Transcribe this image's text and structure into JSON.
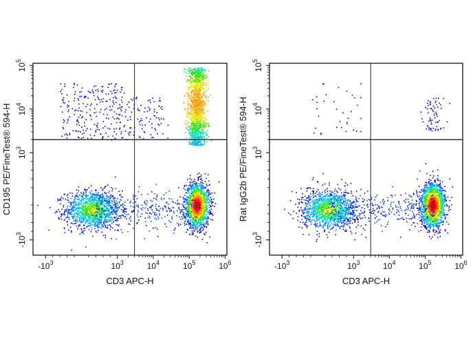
{
  "chart_data": [
    {
      "type": "scatter",
      "subtype": "flow-cytometry-density-plot",
      "xlabel": "CD3 APC-H",
      "ylabel": "CD195 PE/FineTest® 594-H",
      "x_scale": "biexponential",
      "y_scale": "biexponential",
      "x_ticks": [
        {
          "value": -1000,
          "base": "-10",
          "exp": "3"
        },
        {
          "value": 1000,
          "base": "10",
          "exp": "3"
        },
        {
          "value": 10000,
          "base": "10",
          "exp": "4"
        },
        {
          "value": 100000,
          "base": "10",
          "exp": "5"
        },
        {
          "value": 1000000,
          "base": "10",
          "exp": "6"
        }
      ],
      "y_ticks": [
        {
          "value": -1000,
          "base": "-10",
          "exp": "3"
        },
        {
          "value": 1000,
          "base": "10",
          "exp": "3"
        },
        {
          "value": 10000,
          "base": "10",
          "exp": "4"
        },
        {
          "value": 100000,
          "base": "10",
          "exp": "5"
        }
      ],
      "quadrant_gate": {
        "x": 3000,
        "y": 2000
      },
      "populations": [
        {
          "name": "CD3- cluster",
          "x_center": 300,
          "y_center": -300,
          "relative_density": 0.55
        },
        {
          "name": "CD3+ CD195- cluster",
          "x_center": 160000,
          "y_center": -200,
          "relative_density": 1.0
        },
        {
          "name": "CD3+ CD195+ population",
          "x_center": 170000,
          "y_range": [
            2000,
            100000
          ],
          "relative_density": 0.7
        },
        {
          "name": "CD3- CD195+ scatter",
          "x_range": [
            -1000,
            1500
          ],
          "y_range": [
            2000,
            30000
          ],
          "relative_density": 0.08
        }
      ]
    },
    {
      "type": "scatter",
      "subtype": "flow-cytometry-density-plot",
      "xlabel": "CD3 APC-H",
      "ylabel": "Rat IgG2b PE/FineTest® 594-H",
      "x_scale": "biexponential",
      "y_scale": "biexponential",
      "x_ticks": [
        {
          "value": -1000,
          "base": "-10",
          "exp": "3"
        },
        {
          "value": 1000,
          "base": "10",
          "exp": "3"
        },
        {
          "value": 10000,
          "base": "10",
          "exp": "4"
        },
        {
          "value": 100000,
          "base": "10",
          "exp": "5"
        },
        {
          "value": 1000000,
          "base": "10",
          "exp": "6"
        }
      ],
      "y_ticks": [
        {
          "value": -1000,
          "base": "-10",
          "exp": "3"
        },
        {
          "value": 1000,
          "base": "10",
          "exp": "3"
        },
        {
          "value": 10000,
          "base": "10",
          "exp": "4"
        },
        {
          "value": 100000,
          "base": "10",
          "exp": "5"
        }
      ],
      "quadrant_gate": {
        "x": 3000,
        "y": 2000
      },
      "populations": [
        {
          "name": "CD3- cluster",
          "x_center": 300,
          "y_center": -300,
          "relative_density": 0.55
        },
        {
          "name": "CD3+ cluster",
          "x_center": 160000,
          "y_center": -200,
          "relative_density": 1.0
        },
        {
          "name": "CD3+ upper scatter",
          "x_range": [
            60000,
            300000
          ],
          "y_range": [
            3000,
            20000
          ],
          "relative_density": 0.05
        }
      ]
    }
  ],
  "palette": [
    "#0000cc",
    "#0044ff",
    "#00a0ff",
    "#00e0c0",
    "#40e000",
    "#e8e800",
    "#ffa000",
    "#ff3000",
    "#e00000"
  ]
}
